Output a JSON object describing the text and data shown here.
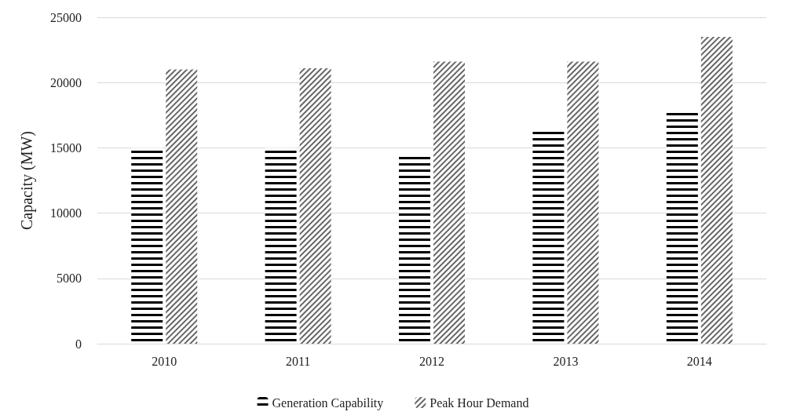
{
  "chart_data": {
    "type": "bar",
    "ylabel": "Capacity (MW)",
    "categories": [
      "2010",
      "2011",
      "2012",
      "2013",
      "2014"
    ],
    "series": [
      {
        "name": "Generation Capability",
        "color": "#000000",
        "values": [
          15000,
          15000,
          14400,
          16500,
          17900
        ]
      },
      {
        "name": "Peak Hour Demand",
        "color": "#000000",
        "values": [
          21000,
          21100,
          21600,
          21600,
          23500
        ]
      }
    ],
    "ylim": [
      0,
      25000
    ],
    "yticks": [
      0,
      5000,
      10000,
      15000,
      20000,
      25000
    ],
    "grid": "y",
    "legend": "bottom"
  }
}
